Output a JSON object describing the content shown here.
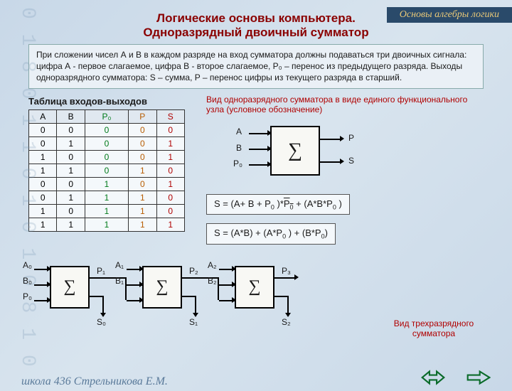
{
  "header_strip": "Основы алгебры логики",
  "title_line1": "Логические основы компьютера.",
  "title_line2": "Одноразрядный двоичный сумматор",
  "intro_text": "При сложении чисел А и В в каждом разряде на вход сумматора должны подаваться три двоичных сигнала: цифра А - первое слагаемое, цифра В - второе слагаемое, P₀ – перенос из предыдущего разряда. Выходы одноразрядного сумматора:  S – сумма, P – перенос цифры из текущего разряда в старший.",
  "table_title": "Таблица входов-выходов",
  "table": {
    "headers": [
      "A",
      "B",
      "P₀",
      "P",
      "S"
    ],
    "header_colors": [
      "#000",
      "#000",
      "#007a1a",
      "#b85c00",
      "#b00000"
    ],
    "rows": [
      [
        "0",
        "0",
        "0",
        "0",
        "0"
      ],
      [
        "0",
        "1",
        "0",
        "0",
        "1"
      ],
      [
        "1",
        "0",
        "0",
        "0",
        "1"
      ],
      [
        "1",
        "1",
        "0",
        "1",
        "0"
      ],
      [
        "0",
        "0",
        "1",
        "0",
        "1"
      ],
      [
        "0",
        "1",
        "1",
        "1",
        "0"
      ],
      [
        "1",
        "0",
        "1",
        "1",
        "0"
      ],
      [
        "1",
        "1",
        "1",
        "1",
        "1"
      ]
    ]
  },
  "single_caption": "Вид одноразрядного сумматора в виде единого функционального узла (условное обозначение)",
  "single_labels": {
    "A": "A",
    "B": "B",
    "P0": "P₀",
    "P": "P",
    "S": "S"
  },
  "formula1_html": "S = (A+ B + P<span class='sub'>0</span> )*<span class='overbar'>P<span class='sub'>0</span></span> + (A*B*P<span class='sub'>0</span> )",
  "formula2_html": "S = (A*B) + (A*P<span class='sub'>0</span> ) + (B*P<span class='sub'>0</span>)",
  "three_caption": "Вид трехразрядного сумматора",
  "three_labels": {
    "A0": "A₀",
    "B0": "B₀",
    "P0": "P₀",
    "S0": "S₀",
    "P1": "P₁",
    "A1": "A₁",
    "B1": "B₁",
    "S1": "S₁",
    "P2": "P₂",
    "A2": "A₂",
    "B2": "B₂",
    "S2": "S₂",
    "P3": "P₃"
  },
  "footer_school": "школа 436 Стрельникова Е.М.",
  "colors": {
    "title": "#8a0000",
    "caption": "#b00000",
    "arrow": "#0a6b2a",
    "strip_bg": "#2a4a6a",
    "strip_text": "#e8c878"
  },
  "bg_digits": "0 1 8 0 1 1 0 1 0 1 0 8 1 0"
}
